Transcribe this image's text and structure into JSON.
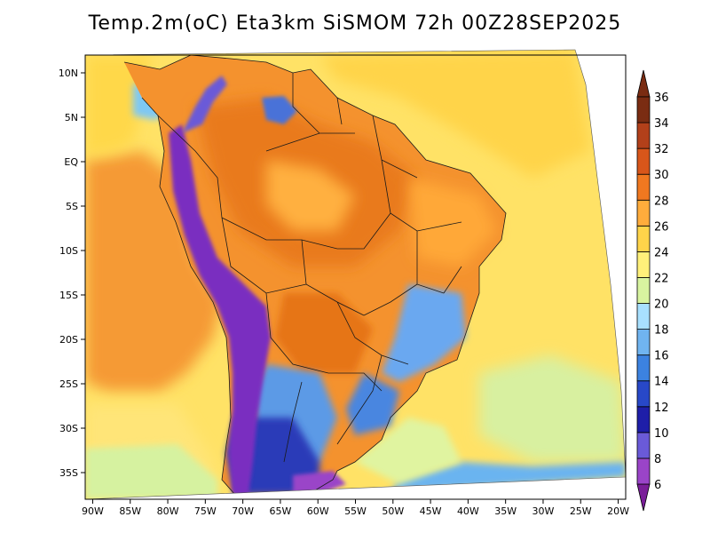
{
  "title": "Temp.2m(oC) Eta3km SiSMOM 72h 00Z28SEP2025",
  "map": {
    "variable": "2 m air temperature",
    "units": "oC",
    "lon_range": [
      -91,
      -19
    ],
    "lat_range": [
      -38,
      12
    ],
    "lat_ticks": [
      "10N",
      "5N",
      "EQ",
      "5S",
      "10S",
      "15S",
      "20S",
      "25S",
      "30S",
      "35S"
    ],
    "lat_tick_values": [
      10,
      5,
      0,
      -5,
      -10,
      -15,
      -20,
      -25,
      -30,
      -35
    ],
    "lon_ticks": [
      "90W",
      "85W",
      "80W",
      "75W",
      "70W",
      "65W",
      "60W",
      "55W",
      "50W",
      "45W",
      "40W",
      "35W",
      "30W",
      "25W",
      "20W"
    ],
    "lon_tick_values": [
      -90,
      -85,
      -80,
      -75,
      -70,
      -65,
      -60,
      -55,
      -50,
      -45,
      -40,
      -35,
      -30,
      -25,
      -20
    ]
  },
  "colorbar": {
    "levels": [
      "6",
      "8",
      "10",
      "12",
      "14",
      "16",
      "18",
      "20",
      "22",
      "24",
      "26",
      "28",
      "30",
      "32",
      "34",
      "36"
    ],
    "colors": [
      "#7a1e99",
      "#9a44c8",
      "#6a5ad8",
      "#1e1ea8",
      "#2848c8",
      "#3c82e0",
      "#70b4f0",
      "#a8e0ff",
      "#d8f4a0",
      "#fff07a",
      "#ffd44a",
      "#ffac3c",
      "#f07820",
      "#d8561a",
      "#b2401a",
      "#7a2c12"
    ]
  },
  "palette": {
    "ocean_warm": "#ffdc50",
    "ocean_mid": "#ffec78",
    "ocean_cool": "#e0f4a0",
    "pacific": "#f59a36",
    "land_hot": "#f08c2c",
    "land_warm": "#fdb440",
    "andes_cold": "#8a3cc8",
    "patagonia_cold": "#2a3ab8",
    "highlands": "#6aa8f0"
  }
}
